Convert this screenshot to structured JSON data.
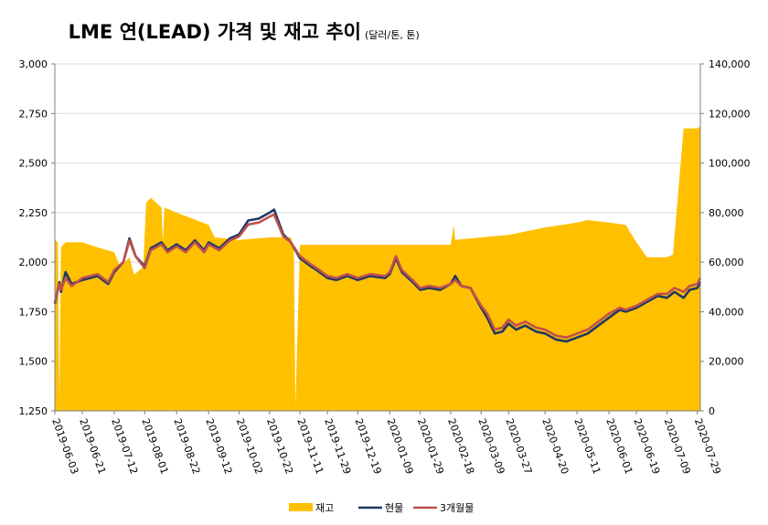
{
  "chart_data": {
    "type": "combo",
    "title": "LME 연(LEAD) 가격 및 재고 추이",
    "unit": "(달러/톤, 톤)",
    "y_left": {
      "min": 1250,
      "max": 3000,
      "ticks": [
        1250,
        1500,
        1750,
        2000,
        2250,
        2500,
        2750,
        3000
      ],
      "tick_labels": [
        "1,250",
        "1,500",
        "1,750",
        "2,000",
        "2,250",
        "2,500",
        "2,750",
        "3,000"
      ]
    },
    "y_right": {
      "min": 0,
      "max": 140000,
      "ticks": [
        0,
        20000,
        40000,
        60000,
        80000,
        100000,
        120000,
        140000
      ],
      "tick_labels": [
        "0",
        "20,000",
        "40,000",
        "60,000",
        "80,000",
        "100,000",
        "120,000",
        "140,000"
      ]
    },
    "x_tick_labels": [
      "2019-06-03",
      "2019-06-21",
      "2019-07-12",
      "2019-08-01",
      "2019-08-22",
      "2019-09-12",
      "2019-10-02",
      "2019-10-22",
      "2019-11-11",
      "2019-11-29",
      "2019-12-19",
      "2020-01-09",
      "2020-01-29",
      "2020-02-18",
      "2020-03-09",
      "2020-03-27",
      "2020-04-20",
      "2020-05-11",
      "2020-06-01",
      "2020-06-19",
      "2020-07-09",
      "2020-07-29"
    ],
    "grid": "horizontal",
    "legend_position": "bottom",
    "colors": {
      "stock": "#FFC000",
      "cash": "#1F3864",
      "three_month": "#C0504D",
      "grid": "#D9D9D9",
      "axis": "#808080"
    },
    "series": [
      {
        "name": "재고",
        "type": "area",
        "axis": "right",
        "points": [
          [
            "2019-06-03",
            69000
          ],
          [
            "2019-06-05",
            68000
          ],
          [
            "2019-06-06",
            2000
          ],
          [
            "2019-06-07",
            66000
          ],
          [
            "2019-06-10",
            68000
          ],
          [
            "2019-06-21",
            68000
          ],
          [
            "2019-07-01",
            66000
          ],
          [
            "2019-07-12",
            64000
          ],
          [
            "2019-07-16",
            58000
          ],
          [
            "2019-07-22",
            62000
          ],
          [
            "2019-07-25",
            55000
          ],
          [
            "2019-07-31",
            58000
          ],
          [
            "2019-08-02",
            84000
          ],
          [
            "2019-08-05",
            86000
          ],
          [
            "2019-08-12",
            82000
          ],
          [
            "2019-08-13",
            68000
          ],
          [
            "2019-08-14",
            82000
          ],
          [
            "2019-08-22",
            80000
          ],
          [
            "2019-09-12",
            75000
          ],
          [
            "2019-09-16",
            70000
          ],
          [
            "2019-10-02",
            69000
          ],
          [
            "2019-10-22",
            70000
          ],
          [
            "2019-11-05",
            70000
          ],
          [
            "2019-11-07",
            66000
          ],
          [
            "2019-11-08",
            2000
          ],
          [
            "2019-11-11",
            67000
          ],
          [
            "2019-11-29",
            67000
          ],
          [
            "2019-12-19",
            67000
          ],
          [
            "2020-01-09",
            67000
          ],
          [
            "2020-01-29",
            67000
          ],
          [
            "2020-02-18",
            67000
          ],
          [
            "2020-02-20",
            75000
          ],
          [
            "2020-02-21",
            69000
          ],
          [
            "2020-03-09",
            70000
          ],
          [
            "2020-03-27",
            71000
          ],
          [
            "2020-04-20",
            74000
          ],
          [
            "2020-05-11",
            76000
          ],
          [
            "2020-05-18",
            77000
          ],
          [
            "2020-06-01",
            76000
          ],
          [
            "2020-06-12",
            75000
          ],
          [
            "2020-06-19",
            68000
          ],
          [
            "2020-06-26",
            62000
          ],
          [
            "2020-07-09",
            62000
          ],
          [
            "2020-07-13",
            63000
          ],
          [
            "2020-07-20",
            114000
          ],
          [
            "2020-07-29",
            114000
          ],
          [
            "2020-07-31",
            115000
          ]
        ]
      },
      {
        "name": "현물",
        "type": "line",
        "axis": "left",
        "points": [
          [
            "2019-06-03",
            1790
          ],
          [
            "2019-06-06",
            1900
          ],
          [
            "2019-06-07",
            1850
          ],
          [
            "2019-06-10",
            1950
          ],
          [
            "2019-06-14",
            1890
          ],
          [
            "2019-06-21",
            1910
          ],
          [
            "2019-07-01",
            1930
          ],
          [
            "2019-07-08",
            1890
          ],
          [
            "2019-07-12",
            1950
          ],
          [
            "2019-07-18",
            2000
          ],
          [
            "2019-07-22",
            2120
          ],
          [
            "2019-07-26",
            2030
          ],
          [
            "2019-08-01",
            1980
          ],
          [
            "2019-08-05",
            2070
          ],
          [
            "2019-08-12",
            2100
          ],
          [
            "2019-08-16",
            2060
          ],
          [
            "2019-08-22",
            2090
          ],
          [
            "2019-08-28",
            2060
          ],
          [
            "2019-09-03",
            2110
          ],
          [
            "2019-09-09",
            2060
          ],
          [
            "2019-09-12",
            2100
          ],
          [
            "2019-09-19",
            2070
          ],
          [
            "2019-09-26",
            2120
          ],
          [
            "2019-10-02",
            2140
          ],
          [
            "2019-10-08",
            2210
          ],
          [
            "2019-10-15",
            2220
          ],
          [
            "2019-10-22",
            2250
          ],
          [
            "2019-10-25",
            2265
          ],
          [
            "2019-10-31",
            2140
          ],
          [
            "2019-11-05",
            2100
          ],
          [
            "2019-11-11",
            2020
          ],
          [
            "2019-11-18",
            1980
          ],
          [
            "2019-11-22",
            1960
          ],
          [
            "2019-11-29",
            1920
          ],
          [
            "2019-12-05",
            1910
          ],
          [
            "2019-12-12",
            1930
          ],
          [
            "2019-12-19",
            1910
          ],
          [
            "2019-12-27",
            1930
          ],
          [
            "2020-01-06",
            1920
          ],
          [
            "2020-01-09",
            1940
          ],
          [
            "2020-01-13",
            2020
          ],
          [
            "2020-01-17",
            1950
          ],
          [
            "2020-01-24",
            1900
          ],
          [
            "2020-01-29",
            1860
          ],
          [
            "2020-02-04",
            1870
          ],
          [
            "2020-02-11",
            1860
          ],
          [
            "2020-02-18",
            1890
          ],
          [
            "2020-02-21",
            1930
          ],
          [
            "2020-02-25",
            1880
          ],
          [
            "2020-03-02",
            1870
          ],
          [
            "2020-03-09",
            1770
          ],
          [
            "2020-03-13",
            1720
          ],
          [
            "2020-03-18",
            1640
          ],
          [
            "2020-03-23",
            1650
          ],
          [
            "2020-03-27",
            1690
          ],
          [
            "2020-04-01",
            1660
          ],
          [
            "2020-04-07",
            1680
          ],
          [
            "2020-04-14",
            1650
          ],
          [
            "2020-04-20",
            1640
          ],
          [
            "2020-04-27",
            1610
          ],
          [
            "2020-05-04",
            1600
          ],
          [
            "2020-05-11",
            1620
          ],
          [
            "2020-05-18",
            1640
          ],
          [
            "2020-05-25",
            1680
          ],
          [
            "2020-06-01",
            1720
          ],
          [
            "2020-06-08",
            1760
          ],
          [
            "2020-06-12",
            1750
          ],
          [
            "2020-06-19",
            1770
          ],
          [
            "2020-06-26",
            1800
          ],
          [
            "2020-07-03",
            1830
          ],
          [
            "2020-07-09",
            1820
          ],
          [
            "2020-07-14",
            1850
          ],
          [
            "2020-07-20",
            1820
          ],
          [
            "2020-07-24",
            1860
          ],
          [
            "2020-07-29",
            1870
          ],
          [
            "2020-07-31",
            1900
          ]
        ]
      },
      {
        "name": "3개월물",
        "type": "line",
        "axis": "left",
        "points": [
          [
            "2019-06-03",
            1800
          ],
          [
            "2019-06-06",
            1890
          ],
          [
            "2019-06-07",
            1860
          ],
          [
            "2019-06-10",
            1920
          ],
          [
            "2019-06-14",
            1880
          ],
          [
            "2019-06-21",
            1920
          ],
          [
            "2019-07-01",
            1940
          ],
          [
            "2019-07-08",
            1900
          ],
          [
            "2019-07-12",
            1960
          ],
          [
            "2019-07-18",
            2000
          ],
          [
            "2019-07-22",
            2110
          ],
          [
            "2019-07-26",
            2030
          ],
          [
            "2019-08-01",
            1970
          ],
          [
            "2019-08-05",
            2060
          ],
          [
            "2019-08-12",
            2090
          ],
          [
            "2019-08-16",
            2050
          ],
          [
            "2019-08-22",
            2080
          ],
          [
            "2019-08-28",
            2050
          ],
          [
            "2019-09-03",
            2100
          ],
          [
            "2019-09-09",
            2050
          ],
          [
            "2019-09-12",
            2090
          ],
          [
            "2019-09-19",
            2060
          ],
          [
            "2019-09-26",
            2110
          ],
          [
            "2019-10-02",
            2130
          ],
          [
            "2019-10-08",
            2190
          ],
          [
            "2019-10-15",
            2200
          ],
          [
            "2019-10-22",
            2230
          ],
          [
            "2019-10-25",
            2240
          ],
          [
            "2019-10-31",
            2130
          ],
          [
            "2019-11-05",
            2100
          ],
          [
            "2019-11-11",
            2030
          ],
          [
            "2019-11-18",
            1990
          ],
          [
            "2019-11-22",
            1970
          ],
          [
            "2019-11-29",
            1930
          ],
          [
            "2019-12-05",
            1920
          ],
          [
            "2019-12-12",
            1940
          ],
          [
            "2019-12-19",
            1920
          ],
          [
            "2019-12-27",
            1940
          ],
          [
            "2020-01-06",
            1930
          ],
          [
            "2020-01-09",
            1950
          ],
          [
            "2020-01-13",
            2030
          ],
          [
            "2020-01-17",
            1960
          ],
          [
            "2020-01-24",
            1910
          ],
          [
            "2020-01-29",
            1870
          ],
          [
            "2020-02-04",
            1880
          ],
          [
            "2020-02-11",
            1870
          ],
          [
            "2020-02-18",
            1890
          ],
          [
            "2020-02-21",
            1910
          ],
          [
            "2020-02-25",
            1880
          ],
          [
            "2020-03-02",
            1870
          ],
          [
            "2020-03-09",
            1780
          ],
          [
            "2020-03-13",
            1740
          ],
          [
            "2020-03-18",
            1660
          ],
          [
            "2020-03-23",
            1670
          ],
          [
            "2020-03-27",
            1710
          ],
          [
            "2020-04-01",
            1680
          ],
          [
            "2020-04-07",
            1700
          ],
          [
            "2020-04-14",
            1670
          ],
          [
            "2020-04-20",
            1660
          ],
          [
            "2020-04-27",
            1630
          ],
          [
            "2020-05-04",
            1620
          ],
          [
            "2020-05-11",
            1640
          ],
          [
            "2020-05-18",
            1660
          ],
          [
            "2020-05-25",
            1700
          ],
          [
            "2020-06-01",
            1740
          ],
          [
            "2020-06-08",
            1770
          ],
          [
            "2020-06-12",
            1760
          ],
          [
            "2020-06-19",
            1780
          ],
          [
            "2020-06-26",
            1810
          ],
          [
            "2020-07-03",
            1840
          ],
          [
            "2020-07-09",
            1840
          ],
          [
            "2020-07-14",
            1870
          ],
          [
            "2020-07-20",
            1850
          ],
          [
            "2020-07-24",
            1880
          ],
          [
            "2020-07-29",
            1890
          ],
          [
            "2020-07-31",
            1920
          ]
        ]
      }
    ]
  }
}
